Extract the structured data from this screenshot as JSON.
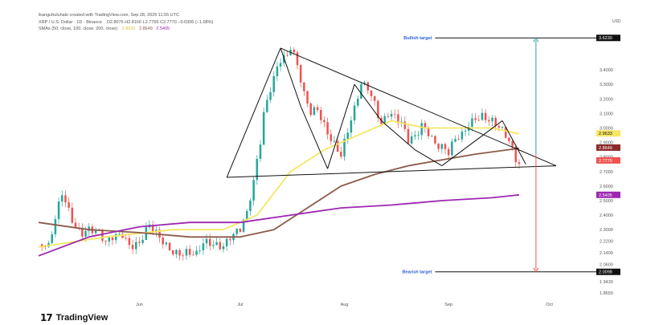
{
  "header": {
    "credit": "ikanguhuluhale created with TradingView.com, Sep 28, 2025 11:55 UTC",
    "symbol_line": "XRP / U.S. Dollar · 1D · Binance",
    "ohlc": "O2.8076  H2.8166  L2.7765  C2.7770  −0.0306 (−1.08%)",
    "sma_label": "SMAs (50, close, 100, close, 200, close)",
    "sma_values": [
      "2.9633",
      "2.8649",
      "2.5405"
    ],
    "currency": "USD"
  },
  "annotations": {
    "bullish_label": "Bullish target",
    "bearish_label": "Bearish target"
  },
  "footer": {
    "brand": "TradingView"
  },
  "colors": {
    "bull": "#26a69a",
    "bear": "#ef5350",
    "sma50": "#f5e663",
    "sma100": "#8b5a4a",
    "sma200": "#9c27b0",
    "target_up": "#26a69a",
    "target_down": "#ef5350"
  },
  "chart_data": {
    "type": "candlestick",
    "title": "XRP / U.S. Dollar · 1D · Binance",
    "ylabel": "USD",
    "ylim": [
      1.865,
      3.66
    ],
    "y_ticks": [
      1.865,
      1.943,
      2.06,
      2.14,
      2.22,
      2.3,
      2.4,
      2.5,
      2.6,
      2.7,
      2.8,
      2.9,
      3.0,
      3.1,
      3.2,
      3.3,
      3.4,
      3.623
    ],
    "y_tick_labels": [
      "1.8650",
      "1.9430",
      "2.0600",
      "2.1400",
      "2.2200",
      "2.3000",
      "2.4000",
      "2.5000",
      "2.6000",
      "2.7000",
      "2.8000",
      "2.9000",
      "3.0000",
      "3.1000",
      "3.2000",
      "3.3000",
      "3.4000",
      "3.6230"
    ],
    "x_ticks": [
      {
        "label": "Jun",
        "day": 30
      },
      {
        "label": "Jul",
        "day": 60
      },
      {
        "label": "Aug",
        "day": 91
      },
      {
        "label": "Sep",
        "day": 122
      },
      {
        "label": "Oct",
        "day": 152
      }
    ],
    "x_range": [
      0,
      165
    ],
    "price_points": [
      [
        0,
        2.2
      ],
      [
        3,
        2.15
      ],
      [
        5,
        2.35
      ],
      [
        7,
        2.55
      ],
      [
        9,
        2.45
      ],
      [
        11,
        2.35
      ],
      [
        13,
        2.3
      ],
      [
        15,
        2.3
      ],
      [
        18,
        2.25
      ],
      [
        20,
        2.18
      ],
      [
        22,
        2.25
      ],
      [
        25,
        2.3
      ],
      [
        27,
        2.22
      ],
      [
        30,
        2.2
      ],
      [
        33,
        2.3
      ],
      [
        35,
        2.25
      ],
      [
        38,
        2.2
      ],
      [
        41,
        2.17
      ],
      [
        44,
        2.15
      ],
      [
        47,
        2.1
      ],
      [
        49,
        2.18
      ],
      [
        52,
        2.2
      ],
      [
        55,
        2.22
      ],
      [
        57,
        2.28
      ],
      [
        60,
        2.3
      ],
      [
        62,
        2.38
      ],
      [
        64,
        2.6
      ],
      [
        66,
        2.9
      ],
      [
        67,
        3.1
      ],
      [
        69,
        3.3
      ],
      [
        71,
        3.45
      ],
      [
        72,
        3.5
      ],
      [
        74,
        3.5
      ],
      [
        75,
        3.55
      ],
      [
        77,
        3.4
      ],
      [
        79,
        3.2
      ],
      [
        81,
        3.1
      ],
      [
        83,
        3.15
      ],
      [
        86,
        3.0
      ],
      [
        88,
        2.9
      ],
      [
        90,
        2.8
      ],
      [
        92,
        2.95
      ],
      [
        94,
        3.1
      ],
      [
        96,
        3.3
      ],
      [
        98,
        3.3
      ],
      [
        100,
        3.2
      ],
      [
        102,
        3.05
      ],
      [
        104,
        3.1
      ],
      [
        106,
        3.05
      ],
      [
        108,
        3.0
      ],
      [
        110,
        2.9
      ],
      [
        112,
        2.95
      ],
      [
        114,
        3.05
      ],
      [
        116,
        3.0
      ],
      [
        118,
        2.9
      ],
      [
        120,
        2.85
      ],
      [
        122,
        2.8
      ],
      [
        124,
        2.9
      ],
      [
        126,
        2.95
      ],
      [
        128,
        3.05
      ],
      [
        130,
        3.1
      ],
      [
        132,
        3.1
      ],
      [
        134,
        3.05
      ],
      [
        136,
        3.0
      ],
      [
        138,
        2.95
      ],
      [
        140,
        2.9
      ],
      [
        142,
        2.8
      ],
      [
        143,
        2.78
      ]
    ],
    "series": [
      {
        "name": "SMA 50",
        "values": [
          [
            0,
            2.18
          ],
          [
            20,
            2.25
          ],
          [
            40,
            2.3
          ],
          [
            55,
            2.3
          ],
          [
            65,
            2.4
          ],
          [
            75,
            2.7
          ],
          [
            85,
            2.85
          ],
          [
            95,
            2.95
          ],
          [
            105,
            3.05
          ],
          [
            115,
            3.0
          ],
          [
            125,
            3.0
          ],
          [
            135,
            3.0
          ],
          [
            143,
            2.96
          ]
        ]
      },
      {
        "name": "SMA 100",
        "values": [
          [
            0,
            2.35
          ],
          [
            15,
            2.3
          ],
          [
            30,
            2.28
          ],
          [
            45,
            2.25
          ],
          [
            60,
            2.25
          ],
          [
            70,
            2.3
          ],
          [
            80,
            2.45
          ],
          [
            90,
            2.6
          ],
          [
            100,
            2.68
          ],
          [
            110,
            2.74
          ],
          [
            120,
            2.78
          ],
          [
            130,
            2.82
          ],
          [
            143,
            2.86
          ]
        ]
      },
      {
        "name": "SMA 200",
        "values": [
          [
            0,
            2.12
          ],
          [
            15,
            2.25
          ],
          [
            30,
            2.32
          ],
          [
            45,
            2.35
          ],
          [
            60,
            2.35
          ],
          [
            75,
            2.4
          ],
          [
            90,
            2.45
          ],
          [
            105,
            2.47
          ],
          [
            120,
            2.5
          ],
          [
            135,
            2.52
          ],
          [
            143,
            2.54
          ]
        ]
      }
    ],
    "pattern_lines": [
      [
        [
          72,
          3.55
        ],
        [
          154,
          2.74
        ]
      ],
      [
        [
          56,
          2.66
        ],
        [
          154,
          2.74
        ]
      ],
      [
        [
          56,
          2.66
        ],
        [
          72,
          3.55
        ]
      ],
      [
        [
          72,
          3.55
        ],
        [
          78,
          3.15
        ]
      ],
      [
        [
          78,
          3.15
        ],
        [
          86,
          2.72
        ]
      ],
      [
        [
          86,
          2.72
        ],
        [
          94,
          3.3
        ]
      ],
      [
        [
          94,
          3.3
        ],
        [
          102,
          3.05
        ]
      ],
      [
        [
          102,
          3.05
        ],
        [
          112,
          2.85
        ]
      ],
      [
        [
          112,
          2.85
        ],
        [
          120,
          2.74
        ]
      ],
      [
        [
          120,
          2.74
        ],
        [
          138,
          3.05
        ]
      ],
      [
        [
          138,
          3.05
        ],
        [
          145,
          2.75
        ]
      ]
    ],
    "targets": {
      "bullish": 3.62,
      "bearish": 2.01
    },
    "arrow_x_day": 148
  }
}
